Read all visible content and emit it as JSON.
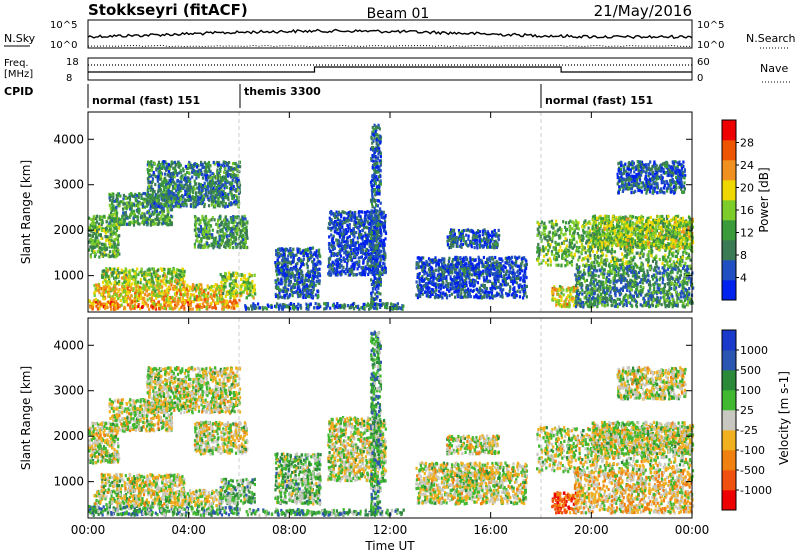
{
  "header": {
    "title": "Stokkseyri (fitACF)",
    "beam": "Beam 01",
    "date": "21/May/2016"
  },
  "noise_panel": {
    "left_label": "N.Sky",
    "right_label": "N.Search",
    "left_ticks": [
      "10^5",
      "10^0"
    ],
    "right_ticks": [
      "10^5",
      "10^0"
    ]
  },
  "freq_panel": {
    "left_label_top": "Freq.",
    "left_label_bottom": "[MHz]",
    "cpid_label": "CPID",
    "right_label": "Nave",
    "left_ticks": [
      "18",
      "8"
    ],
    "right_ticks": [
      "60",
      "0"
    ]
  },
  "cpid_segments": [
    {
      "start_hour": 0,
      "label": "normal (fast) 151"
    },
    {
      "start_hour": 6,
      "label": "themis 3300"
    },
    {
      "start_hour": 18,
      "label": "normal (fast) 151"
    }
  ],
  "colors": {
    "power": [
      "#0022ee",
      "#1f4fc0",
      "#3a7a55",
      "#3a9b3a",
      "#7ccc2a",
      "#eed800",
      "#f09020",
      "#ee5500",
      "#ee0000"
    ],
    "velocity": [
      "#ee0000",
      "#f05010",
      "#f08010",
      "#f0b020",
      "#c8c8c0",
      "#40b830",
      "#2a8a3a",
      "#2a55b0",
      "#1a3acc"
    ]
  },
  "chart_data": [
    {
      "type": "heatmap",
      "panel": "power",
      "ylabel": "Slant Range [km]",
      "ylim": [
        200,
        4600
      ],
      "yticks": [
        1000,
        2000,
        3000,
        4000
      ],
      "xlim": [
        0,
        24
      ],
      "xticks": [
        0,
        4,
        8,
        12,
        16,
        20,
        24
      ],
      "colorbar": {
        "label": "Power [dB]",
        "ticks": [
          "4",
          "8",
          "12",
          "16",
          "20",
          "24",
          "28"
        ]
      },
      "regions": [
        {
          "t0": 0.0,
          "t1": 6.0,
          "r0": 250,
          "r1": 450,
          "level": 0.72
        },
        {
          "t0": 0.2,
          "t1": 5.3,
          "r0": 450,
          "r1": 800,
          "level": 0.62
        },
        {
          "t0": 0.5,
          "t1": 3.8,
          "r0": 800,
          "r1": 1150,
          "level": 0.5
        },
        {
          "t0": 0.0,
          "t1": 1.2,
          "r0": 1400,
          "r1": 2300,
          "level": 0.42
        },
        {
          "t0": 0.8,
          "t1": 3.3,
          "r0": 2100,
          "r1": 2800,
          "level": 0.35
        },
        {
          "t0": 2.3,
          "t1": 6.0,
          "r0": 2500,
          "r1": 3500,
          "level": 0.28
        },
        {
          "t0": 4.2,
          "t1": 6.3,
          "r0": 1600,
          "r1": 2300,
          "level": 0.36
        },
        {
          "t0": 5.2,
          "t1": 6.6,
          "r0": 500,
          "r1": 1050,
          "level": 0.5
        },
        {
          "t0": 6.2,
          "t1": 12.5,
          "r0": 250,
          "r1": 380,
          "level": 0.22
        },
        {
          "t0": 7.4,
          "t1": 9.2,
          "r0": 500,
          "r1": 1600,
          "level": 0.18
        },
        {
          "t0": 9.5,
          "t1": 11.8,
          "r0": 1000,
          "r1": 2400,
          "level": 0.14
        },
        {
          "t0": 11.2,
          "t1": 11.6,
          "r0": 300,
          "r1": 4300,
          "level": 0.2
        },
        {
          "t0": 14.2,
          "t1": 16.3,
          "r0": 1600,
          "r1": 2000,
          "level": 0.2
        },
        {
          "t0": 14.6,
          "t1": 16.4,
          "r0": 1000,
          "r1": 1200,
          "level": 0.26
        },
        {
          "t0": 13.0,
          "t1": 17.4,
          "r0": 500,
          "r1": 1400,
          "level": 0.14
        },
        {
          "t0": 17.8,
          "t1": 24.0,
          "r0": 1200,
          "r1": 2200,
          "level": 0.42
        },
        {
          "t0": 20.0,
          "t1": 24.0,
          "r0": 1600,
          "r1": 2300,
          "level": 0.5
        },
        {
          "t0": 18.4,
          "t1": 19.4,
          "r0": 300,
          "r1": 750,
          "level": 0.6
        },
        {
          "t0": 19.3,
          "t1": 24.0,
          "r0": 300,
          "r1": 1200,
          "level": 0.3
        },
        {
          "t0": 21.0,
          "t1": 23.7,
          "r0": 2800,
          "r1": 3500,
          "level": 0.2
        }
      ]
    },
    {
      "type": "heatmap",
      "panel": "velocity",
      "ylabel": "Slant Range [km]",
      "xlabel": "Time UT",
      "ylim": [
        200,
        4600
      ],
      "yticks": [
        1000,
        2000,
        3000,
        4000
      ],
      "xlim": [
        0,
        24
      ],
      "xticks": [
        0,
        4,
        8,
        12,
        16,
        20,
        24
      ],
      "xtick_labels": [
        "00:00",
        "04:00",
        "08:00",
        "12:00",
        "16:00",
        "20:00",
        "00:00"
      ],
      "colorbar": {
        "label": "Velocity [m s-1]",
        "ticks": [
          "-1000",
          "-500",
          "-100",
          "-25",
          "25",
          "100",
          "500",
          "1000"
        ]
      },
      "regions": [
        {
          "t0": 0.0,
          "t1": 6.0,
          "r0": 250,
          "r1": 450,
          "level": 0.68
        },
        {
          "t0": 0.2,
          "t1": 5.3,
          "r0": 450,
          "r1": 800,
          "level": 0.5
        },
        {
          "t0": 0.5,
          "t1": 3.8,
          "r0": 800,
          "r1": 1150,
          "level": 0.5
        },
        {
          "t0": 0.0,
          "t1": 1.2,
          "r0": 1400,
          "r1": 2300,
          "level": 0.5
        },
        {
          "t0": 0.8,
          "t1": 3.3,
          "r0": 2100,
          "r1": 2800,
          "level": 0.5
        },
        {
          "t0": 2.3,
          "t1": 6.0,
          "r0": 2500,
          "r1": 3500,
          "level": 0.5
        },
        {
          "t0": 4.2,
          "t1": 6.3,
          "r0": 1600,
          "r1": 2300,
          "level": 0.5
        },
        {
          "t0": 5.2,
          "t1": 6.6,
          "r0": 500,
          "r1": 1050,
          "level": 0.62
        },
        {
          "t0": 6.2,
          "t1": 12.5,
          "r0": 250,
          "r1": 380,
          "level": 0.66
        },
        {
          "t0": 7.4,
          "t1": 9.2,
          "r0": 500,
          "r1": 1600,
          "level": 0.6
        },
        {
          "t0": 9.5,
          "t1": 11.8,
          "r0": 1000,
          "r1": 2400,
          "level": 0.5
        },
        {
          "t0": 11.2,
          "t1": 11.6,
          "r0": 300,
          "r1": 4300,
          "level": 0.66
        },
        {
          "t0": 14.2,
          "t1": 16.3,
          "r0": 1600,
          "r1": 2000,
          "level": 0.5
        },
        {
          "t0": 14.6,
          "t1": 16.4,
          "r0": 1000,
          "r1": 1200,
          "level": 0.5
        },
        {
          "t0": 13.0,
          "t1": 17.4,
          "r0": 500,
          "r1": 1400,
          "level": 0.5
        },
        {
          "t0": 17.8,
          "t1": 24.0,
          "r0": 1200,
          "r1": 2200,
          "level": 0.5
        },
        {
          "t0": 20.0,
          "t1": 24.0,
          "r0": 1600,
          "r1": 2300,
          "level": 0.5
        },
        {
          "t0": 18.4,
          "t1": 19.4,
          "r0": 300,
          "r1": 750,
          "level": 0.2
        },
        {
          "t0": 19.3,
          "t1": 24.0,
          "r0": 300,
          "r1": 1200,
          "level": 0.42
        },
        {
          "t0": 21.0,
          "t1": 23.7,
          "r0": 2800,
          "r1": 3500,
          "level": 0.5
        }
      ]
    }
  ]
}
